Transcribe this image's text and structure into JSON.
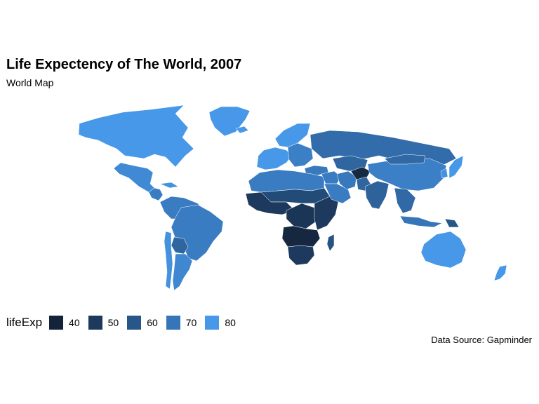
{
  "title": "Life Expectency of The World, 2007",
  "subtitle": "World Map",
  "caption": "Data Source: Gapminder",
  "legend": {
    "title": "lifeExp",
    "items": [
      {
        "label": "40",
        "color": "#132339"
      },
      {
        "label": "50",
        "color": "#1d3a5e"
      },
      {
        "label": "60",
        "color": "#275688"
      },
      {
        "label": "70",
        "color": "#3675b8"
      },
      {
        "label": "80",
        "color": "#4798e8"
      }
    ]
  },
  "map_regions": [
    {
      "name": "North America",
      "lifeExp": 80
    },
    {
      "name": "Greenland",
      "lifeExp": 80
    },
    {
      "name": "Mexico",
      "lifeExp": 76
    },
    {
      "name": "Central America",
      "lifeExp": 72
    },
    {
      "name": "Cuba",
      "lifeExp": 78
    },
    {
      "name": "South America North",
      "lifeExp": 72
    },
    {
      "name": "Brazil",
      "lifeExp": 72
    },
    {
      "name": "Bolivia",
      "lifeExp": 65
    },
    {
      "name": "Argentina",
      "lifeExp": 75
    },
    {
      "name": "Chile",
      "lifeExp": 78
    },
    {
      "name": "Iceland",
      "lifeExp": 81
    },
    {
      "name": "Western Europe",
      "lifeExp": 80
    },
    {
      "name": "Scandinavia",
      "lifeExp": 80
    },
    {
      "name": "Eastern Europe",
      "lifeExp": 73
    },
    {
      "name": "Russia",
      "lifeExp": 67
    },
    {
      "name": "Turkey",
      "lifeExp": 71
    },
    {
      "name": "North Africa",
      "lifeExp": 72
    },
    {
      "name": "Sahel",
      "lifeExp": 56
    },
    {
      "name": "West Africa",
      "lifeExp": 50
    },
    {
      "name": "Central Africa",
      "lifeExp": 48
    },
    {
      "name": "East Africa",
      "lifeExp": 50
    },
    {
      "name": "Angola Zambia",
      "lifeExp": 42
    },
    {
      "name": "Southern Africa",
      "lifeExp": 50
    },
    {
      "name": "Madagascar",
      "lifeExp": 59
    },
    {
      "name": "Middle East",
      "lifeExp": 72
    },
    {
      "name": "Saudi Arabia",
      "lifeExp": 72
    },
    {
      "name": "Iran",
      "lifeExp": 71
    },
    {
      "name": "Central Asia",
      "lifeExp": 65
    },
    {
      "name": "Afghanistan",
      "lifeExp": 43
    },
    {
      "name": "Pakistan",
      "lifeExp": 65
    },
    {
      "name": "India",
      "lifeExp": 64
    },
    {
      "name": "China",
      "lifeExp": 73
    },
    {
      "name": "Mongolia",
      "lifeExp": 66
    },
    {
      "name": "Southeast Asia",
      "lifeExp": 66
    },
    {
      "name": "Indonesia",
      "lifeExp": 70
    },
    {
      "name": "Papua New Guinea",
      "lifeExp": 60
    },
    {
      "name": "Japan",
      "lifeExp": 82
    },
    {
      "name": "Korea",
      "lifeExp": 78
    },
    {
      "name": "Australia",
      "lifeExp": 81
    },
    {
      "name": "New Zealand",
      "lifeExp": 80
    }
  ]
}
